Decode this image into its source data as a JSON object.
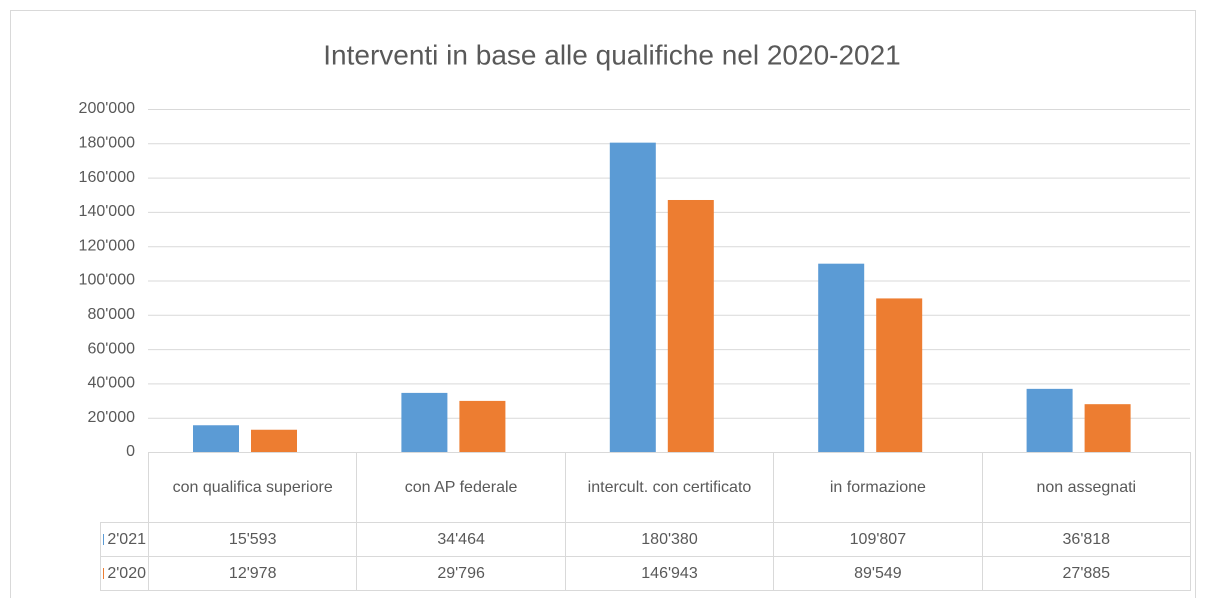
{
  "chart_data": {
    "type": "bar",
    "title": "Interventi in base alle qualifiche nel 2020-2021",
    "categories": [
      "con qualifica superiore",
      "con AP federale",
      "intercult. con certificato",
      "in formazione",
      "non assegnati"
    ],
    "series": [
      {
        "name": "2'021",
        "color": "#5b9bd5",
        "values": [
          15593,
          34464,
          180380,
          109807,
          36818
        ],
        "value_labels": [
          "15'593",
          "34'464",
          "180'380",
          "109'807",
          "36'818"
        ]
      },
      {
        "name": "2'020",
        "color": "#ed7d31",
        "values": [
          12978,
          29796,
          146943,
          89549,
          27885
        ],
        "value_labels": [
          "12'978",
          "29'796",
          "146'943",
          "89'549",
          "27'885"
        ]
      }
    ],
    "ylim": [
      0,
      200000
    ],
    "yticks": [
      0,
      {
        "value": 20000,
        "label": "20'000"
      },
      {
        "value": 40000,
        "label": "40'000"
      },
      {
        "value": 60000,
        "label": "60'000"
      },
      {
        "value": 80000,
        "label": "80'000"
      },
      {
        "value": 100000,
        "label": "100'000"
      },
      {
        "value": 120000,
        "label": "120'000"
      },
      {
        "value": 140000,
        "label": "140'000"
      },
      {
        "value": 160000,
        "label": "160'000"
      },
      {
        "value": 180000,
        "label": "180'000"
      },
      {
        "value": 200000,
        "label": "200'000"
      }
    ],
    "grid": true
  }
}
